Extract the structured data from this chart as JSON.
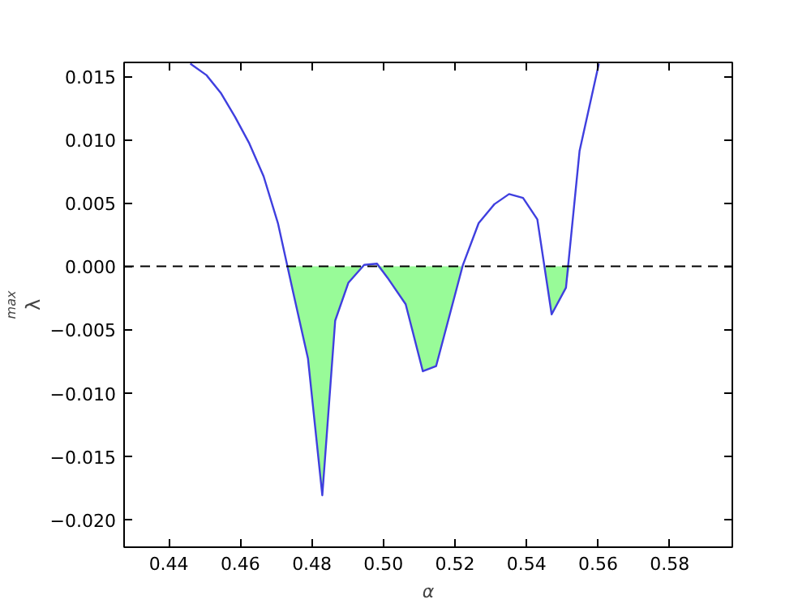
{
  "chart_data": {
    "type": "line",
    "xlabel": "α",
    "ylabel": "λ$_{max}$",
    "xlim": [
      0.4275,
      0.5975
    ],
    "ylim": [
      -0.0222,
      0.0161
    ],
    "xticks": [
      {
        "value": 0.44,
        "label": "0.44"
      },
      {
        "value": 0.46,
        "label": "0.46"
      },
      {
        "value": 0.48,
        "label": "0.48"
      },
      {
        "value": 0.5,
        "label": "0.50"
      },
      {
        "value": 0.52,
        "label": "0.52"
      },
      {
        "value": 0.54,
        "label": "0.54"
      },
      {
        "value": 0.56,
        "label": "0.56"
      },
      {
        "value": 0.58,
        "label": "0.58"
      }
    ],
    "yticks": [
      {
        "value": -0.02,
        "label": "−0.020"
      },
      {
        "value": -0.015,
        "label": "−0.015"
      },
      {
        "value": -0.01,
        "label": "−0.010"
      },
      {
        "value": -0.005,
        "label": "−0.005"
      },
      {
        "value": 0,
        "label": "0.000"
      },
      {
        "value": 0.005,
        "label": "0.005"
      },
      {
        "value": 0.01,
        "label": "0.010"
      },
      {
        "value": 0.015,
        "label": "0.015"
      }
    ],
    "grid": false,
    "marker": "none",
    "line_style": "solid",
    "ref_lines": [
      {
        "axis": "y",
        "value": 0,
        "color": "#000000",
        "line_style": "dashed"
      }
    ],
    "series": [
      {
        "type": "area",
        "color": "#98fb98",
        "x": [
          0.4731,
          0.4747,
          0.4789,
          0.4829,
          0.4865,
          0.4902,
          0.4946,
          0.4982,
          0.5011,
          0.5062,
          0.511,
          0.5147,
          0.5222,
          0.5451,
          0.547,
          0.551,
          0.5521
        ],
        "values": [
          0,
          -0.002,
          -0.0073,
          -0.0181,
          -0.0043,
          -0.0013,
          0,
          0,
          -0.0009,
          -0.003,
          -0.0083,
          -0.0079,
          0,
          0,
          -0.0038,
          -0.0017,
          0
        ]
      },
      {
        "color": "#3f3fdf",
        "x": [
          0.446,
          0.4505,
          0.4545,
          0.4585,
          0.4625,
          0.4665,
          0.4705,
          0.4747,
          0.4789,
          0.4829,
          0.4865,
          0.4902,
          0.4946,
          0.4982,
          0.5011,
          0.5062,
          0.511,
          0.5147,
          0.5222,
          0.5266,
          0.531,
          0.5351,
          0.539,
          0.543,
          0.547,
          0.551,
          0.5548,
          0.5602
        ],
        "values": [
          0.016,
          0.0151,
          0.0137,
          0.0118,
          0.0097,
          0.0071,
          0.0034,
          -0.002,
          -0.0073,
          -0.0181,
          -0.0043,
          -0.0013,
          0.0001,
          0.0002,
          -0.0009,
          -0.003,
          -0.0083,
          -0.0079,
          0.0001,
          0.0034,
          0.0049,
          0.0057,
          0.0054,
          0.0037,
          -0.0038,
          -0.0017,
          0.0091,
          0.016
        ]
      }
    ]
  }
}
